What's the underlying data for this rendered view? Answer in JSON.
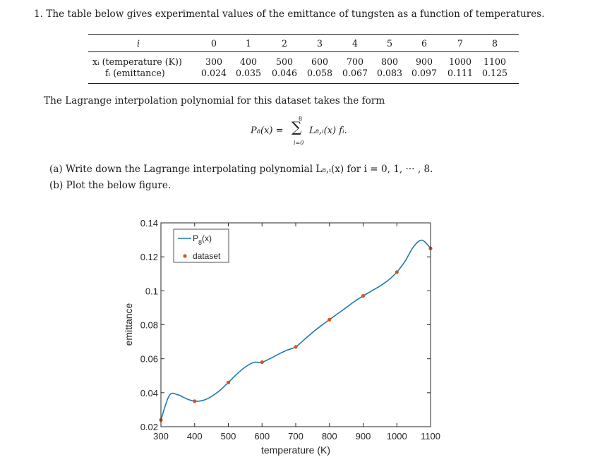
{
  "problem": {
    "statement": "1. The table below gives experimental values of the emittance of tungsten as a function of temperatures."
  },
  "table": {
    "index_header": "i",
    "row1_label": "xᵢ (temperature (K))",
    "row2_label": "fᵢ (emittance)",
    "indices": [
      "0",
      "1",
      "2",
      "3",
      "4",
      "5",
      "6",
      "7",
      "8"
    ],
    "temperatures": [
      "300",
      "400",
      "500",
      "600",
      "700",
      "800",
      "900",
      "1000",
      "1100"
    ],
    "emittances": [
      "0.024",
      "0.035",
      "0.046",
      "0.058",
      "0.067",
      "0.083",
      "0.097",
      "0.111",
      "0.125"
    ]
  },
  "text": {
    "intro": "The Lagrange interpolation polynomial for this dataset takes the form",
    "formula_lhs": "P₈(x) =",
    "formula_sum_top": "8",
    "formula_sum_bottom": "i=0",
    "formula_rhs": "L₈,ᵢ(x) fᵢ.",
    "part_a": "(a) Write down the Lagrange interpolating polynomial L₈,ᵢ(x) for i = 0, 1, ··· , 8.",
    "part_b": "(b) Plot the below figure."
  },
  "colors": {
    "curve": "#1f77b4",
    "points": "#d9531e",
    "axis": "#262626"
  },
  "chart_data": {
    "type": "line",
    "xlabel": "temperature (K)",
    "ylabel": "emittance",
    "xlim": [
      300,
      1100
    ],
    "ylim": [
      0.02,
      0.14
    ],
    "x_ticks": [
      300,
      400,
      500,
      600,
      700,
      800,
      900,
      1000,
      1100
    ],
    "x_tick_labels": [
      "300",
      "400",
      "500",
      "600",
      "700",
      "800",
      "900",
      "1000",
      "1100"
    ],
    "y_ticks": [
      0.02,
      0.04,
      0.06,
      0.08,
      0.1,
      0.12,
      0.14
    ],
    "y_tick_labels": [
      "0.02",
      "0.04",
      "0.06",
      "0.08",
      "0.1",
      "0.12",
      "0.14"
    ],
    "legend_position": "top-left",
    "grid": false,
    "series": [
      {
        "name": "P",
        "name_subscript": "8",
        "name_suffix": "(x)",
        "kind": "line",
        "x": [
          300,
          325,
          350,
          375,
          400,
          425,
          450,
          475,
          500,
          525,
          550,
          575,
          600,
          625,
          650,
          675,
          700,
          725,
          750,
          775,
          800,
          825,
          850,
          875,
          900,
          925,
          950,
          975,
          1000,
          1025,
          1050,
          1075,
          1100
        ],
        "y": [
          0.024,
          0.0384,
          0.0388,
          0.0365,
          0.035,
          0.0355,
          0.0378,
          0.0414,
          0.046,
          0.0509,
          0.0551,
          0.0578,
          0.058,
          0.0602,
          0.0628,
          0.0651,
          0.067,
          0.0712,
          0.0755,
          0.0794,
          0.083,
          0.0866,
          0.0902,
          0.0938,
          0.097,
          0.0999,
          0.1028,
          0.1063,
          0.111,
          0.1176,
          0.1261,
          0.1298,
          0.125
        ]
      },
      {
        "name": "dataset",
        "kind": "points",
        "x": [
          300,
          400,
          500,
          600,
          700,
          800,
          900,
          1000,
          1100
        ],
        "y": [
          0.024,
          0.035,
          0.046,
          0.058,
          0.067,
          0.083,
          0.097,
          0.111,
          0.125
        ]
      }
    ]
  }
}
